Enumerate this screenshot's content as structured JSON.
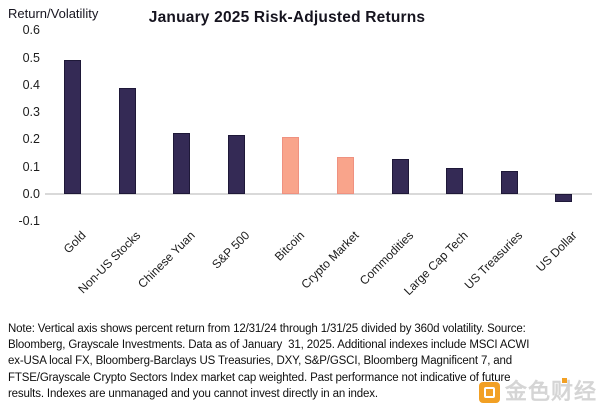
{
  "chart_data": {
    "type": "bar",
    "title": "January 2025 Risk-Adjusted Returns",
    "xlabel": "",
    "ylabel": "Return/Volatility",
    "categories": [
      "Gold",
      "Non-US Stocks",
      "Chinese Yuan",
      "S&P 500",
      "Bitcoin",
      "Crypto Market",
      "Commodities",
      "Large Cap Tech",
      "US Treasuries",
      "US Dollar"
    ],
    "values": [
      0.49,
      0.39,
      0.225,
      0.215,
      0.21,
      0.135,
      0.13,
      0.095,
      0.085,
      -0.03
    ],
    "highlight_indices": [
      4,
      5
    ],
    "ylim": [
      -0.1,
      0.6
    ],
    "yticks": [
      0.6,
      0.5,
      0.4,
      0.3,
      0.2,
      0.1,
      0.0,
      -0.1
    ],
    "grid": false,
    "legend": null,
    "colors": {
      "bar_default": "#342a55",
      "bar_default_border": "#1e1838",
      "bar_highlight": "#f9a48b",
      "bar_highlight_border": "#ef9180",
      "axis_line": "#d9d9d9",
      "text": "#16141f"
    }
  },
  "note": {
    "lines": [
      "Note: Vertical axis shows percent return from 12/31/24 through 1/31/25 divided by 360d volatility. Source:",
      "Bloomberg, Grayscale Investments. Data as of January  31, 2025. Additional indexes include MSCI ACWI",
      "ex-USA local FX, Bloomberg-Barclays US Treasuries, DXY, S&P/GSCI, Bloomberg Magnificent 7, and",
      "FTSE/Grayscale Crypto Sectors Index market cap weighted. Past performance not indicative of future",
      "results. Indexes are unmanaged and you cannot invest directly in an index."
    ]
  },
  "watermark": {
    "text": "金色财经",
    "icon": "jinse-finance-logo",
    "accent_color": "#f2a024"
  }
}
